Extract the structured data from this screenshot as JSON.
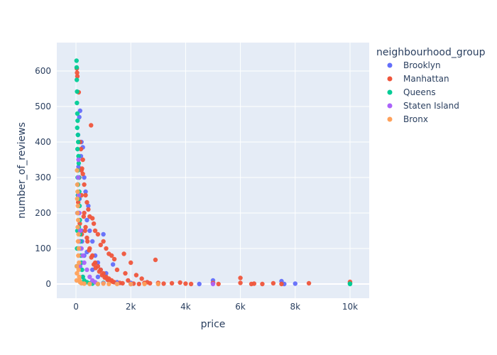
{
  "chart_data": {
    "type": "scatter",
    "title": "",
    "xlabel": "price",
    "ylabel": "number_of_reviews",
    "xlim": [
      -700,
      10700
    ],
    "ylim": [
      -40,
      680
    ],
    "x_ticks": [
      0,
      2000,
      4000,
      6000,
      8000,
      10000
    ],
    "x_tick_labels": [
      "0",
      "2k",
      "4k",
      "6k",
      "8k",
      "10k"
    ],
    "y_ticks": [
      0,
      100,
      200,
      300,
      400,
      500,
      600
    ],
    "y_tick_labels": [
      "0",
      "100",
      "200",
      "300",
      "400",
      "500",
      "600"
    ],
    "grid": true,
    "legend_title": "neighbourhood_group",
    "legend_position": "right",
    "series": [
      {
        "name": "Brooklyn",
        "color": "#636efa",
        "points": [
          [
            150,
            488
          ],
          [
            120,
            470
          ],
          [
            200,
            400
          ],
          [
            250,
            385
          ],
          [
            180,
            360
          ],
          [
            300,
            300
          ],
          [
            90,
            330
          ],
          [
            350,
            260
          ],
          [
            60,
            280
          ],
          [
            450,
            220
          ],
          [
            400,
            180
          ],
          [
            500,
            150
          ],
          [
            600,
            120
          ],
          [
            1000,
            140
          ],
          [
            1350,
            55
          ],
          [
            700,
            80
          ],
          [
            800,
            60
          ],
          [
            900,
            40
          ],
          [
            1100,
            30
          ],
          [
            1200,
            10
          ],
          [
            1500,
            5
          ],
          [
            2000,
            3
          ],
          [
            2500,
            2
          ],
          [
            3000,
            1
          ],
          [
            4500,
            0
          ],
          [
            5000,
            10
          ],
          [
            5000,
            2
          ],
          [
            7500,
            8
          ],
          [
            7600,
            0
          ],
          [
            8000,
            1
          ],
          [
            100,
            100
          ],
          [
            200,
            150
          ],
          [
            50,
            200
          ],
          [
            300,
            80
          ],
          [
            150,
            50
          ],
          [
            250,
            20
          ],
          [
            75,
            420
          ],
          [
            130,
            240
          ],
          [
            220,
            120
          ],
          [
            400,
            90
          ],
          [
            600,
            40
          ],
          [
            800,
            20
          ]
        ]
      },
      {
        "name": "Manhattan",
        "color": "#ef553b",
        "points": [
          [
            30,
            607
          ],
          [
            40,
            595
          ],
          [
            50,
            585
          ],
          [
            100,
            540
          ],
          [
            550,
            447
          ],
          [
            220,
            325
          ],
          [
            200,
            320
          ],
          [
            250,
            310
          ],
          [
            300,
            280
          ],
          [
            350,
            250
          ],
          [
            400,
            230
          ],
          [
            450,
            210
          ],
          [
            500,
            190
          ],
          [
            600,
            185
          ],
          [
            650,
            170
          ],
          [
            700,
            150
          ],
          [
            800,
            140
          ],
          [
            1000,
            120
          ],
          [
            1100,
            100
          ],
          [
            900,
            110
          ],
          [
            1200,
            85
          ],
          [
            1300,
            80
          ],
          [
            1400,
            70
          ],
          [
            1750,
            85
          ],
          [
            2000,
            60
          ],
          [
            2900,
            68
          ],
          [
            1500,
            40
          ],
          [
            1800,
            30
          ],
          [
            2200,
            25
          ],
          [
            1900,
            10
          ],
          [
            2400,
            15
          ],
          [
            2600,
            5
          ],
          [
            3000,
            3
          ],
          [
            3200,
            1
          ],
          [
            3500,
            2
          ],
          [
            3800,
            4
          ],
          [
            4000,
            1
          ],
          [
            4200,
            0
          ],
          [
            5000,
            3
          ],
          [
            5200,
            0
          ],
          [
            6000,
            17
          ],
          [
            6000,
            3
          ],
          [
            6400,
            0
          ],
          [
            6500,
            1
          ],
          [
            6800,
            0
          ],
          [
            7200,
            2
          ],
          [
            7500,
            0
          ],
          [
            8500,
            2
          ],
          [
            10000,
            6
          ],
          [
            10000,
            2
          ],
          [
            150,
            400
          ],
          [
            180,
            380
          ],
          [
            250,
            350
          ],
          [
            300,
            200
          ],
          [
            350,
            160
          ],
          [
            400,
            130
          ],
          [
            500,
            100
          ],
          [
            600,
            80
          ],
          [
            700,
            60
          ],
          [
            800,
            50
          ],
          [
            900,
            40
          ],
          [
            1000,
            30
          ],
          [
            1100,
            20
          ],
          [
            1200,
            15
          ],
          [
            1300,
            10
          ],
          [
            1400,
            5
          ],
          [
            1600,
            3
          ],
          [
            1700,
            2
          ],
          [
            2100,
            1
          ],
          [
            2300,
            0
          ],
          [
            2500,
            3
          ],
          [
            2700,
            2
          ],
          [
            120,
            300
          ],
          [
            200,
            250
          ],
          [
            280,
            190
          ],
          [
            330,
            150
          ],
          [
            420,
            120
          ],
          [
            480,
            95
          ],
          [
            560,
            75
          ],
          [
            650,
            55
          ],
          [
            720,
            45
          ],
          [
            850,
            35
          ],
          [
            950,
            25
          ],
          [
            1050,
            18
          ],
          [
            1150,
            12
          ],
          [
            1250,
            8
          ],
          [
            1350,
            6
          ],
          [
            80,
            230
          ],
          [
            140,
            170
          ],
          [
            210,
            140
          ]
        ]
      },
      {
        "name": "Queens",
        "color": "#00cc96",
        "points": [
          [
            20,
            629
          ],
          [
            25,
            610
          ],
          [
            30,
            575
          ],
          [
            40,
            542
          ],
          [
            35,
            510
          ],
          [
            50,
            480
          ],
          [
            60,
            460
          ],
          [
            45,
            440
          ],
          [
            70,
            420
          ],
          [
            80,
            400
          ],
          [
            55,
            380
          ],
          [
            90,
            360
          ],
          [
            100,
            340
          ],
          [
            65,
            320
          ],
          [
            110,
            300
          ],
          [
            75,
            280
          ],
          [
            120,
            260
          ],
          [
            85,
            240
          ],
          [
            130,
            220
          ],
          [
            95,
            200
          ],
          [
            140,
            180
          ],
          [
            105,
            160
          ],
          [
            150,
            140
          ],
          [
            160,
            120
          ],
          [
            170,
            100
          ],
          [
            180,
            80
          ],
          [
            200,
            60
          ],
          [
            220,
            40
          ],
          [
            250,
            20
          ],
          [
            300,
            10
          ],
          [
            400,
            5
          ],
          [
            500,
            2
          ],
          [
            600,
            1
          ],
          [
            800,
            0
          ],
          [
            1000,
            3
          ],
          [
            1500,
            1
          ],
          [
            2000,
            0
          ],
          [
            10000,
            1
          ],
          [
            10000,
            0
          ],
          [
            60,
            300
          ],
          [
            70,
            250
          ],
          [
            50,
            150
          ],
          [
            40,
            100
          ],
          [
            30,
            50
          ]
        ]
      },
      {
        "name": "Staten Island",
        "color": "#ab63fa",
        "points": [
          [
            80,
            300
          ],
          [
            100,
            250
          ],
          [
            120,
            200
          ],
          [
            150,
            150
          ],
          [
            200,
            100
          ],
          [
            250,
            80
          ],
          [
            300,
            60
          ],
          [
            400,
            40
          ],
          [
            500,
            20
          ],
          [
            600,
            10
          ],
          [
            700,
            5
          ],
          [
            1000,
            2
          ],
          [
            1500,
            1
          ],
          [
            2000,
            0
          ],
          [
            5000,
            0
          ],
          [
            90,
            350
          ],
          [
            110,
            120
          ],
          [
            130,
            50
          ]
        ]
      },
      {
        "name": "Bronx",
        "color": "#ffa15a",
        "points": [
          [
            40,
            320
          ],
          [
            50,
            280
          ],
          [
            60,
            260
          ],
          [
            45,
            240
          ],
          [
            70,
            220
          ],
          [
            55,
            200
          ],
          [
            80,
            180
          ],
          [
            65,
            160
          ],
          [
            90,
            140
          ],
          [
            75,
            120
          ],
          [
            100,
            100
          ],
          [
            85,
            80
          ],
          [
            110,
            60
          ],
          [
            95,
            40
          ],
          [
            120,
            20
          ],
          [
            130,
            10
          ],
          [
            150,
            5
          ],
          [
            200,
            2
          ],
          [
            300,
            1
          ],
          [
            500,
            0
          ],
          [
            800,
            0
          ],
          [
            1000,
            1
          ],
          [
            1200,
            0
          ],
          [
            1500,
            0
          ],
          [
            2000,
            0
          ],
          [
            2500,
            0
          ],
          [
            3000,
            0
          ],
          [
            35,
            30
          ],
          [
            30,
            50
          ],
          [
            25,
            10
          ]
        ]
      }
    ]
  }
}
